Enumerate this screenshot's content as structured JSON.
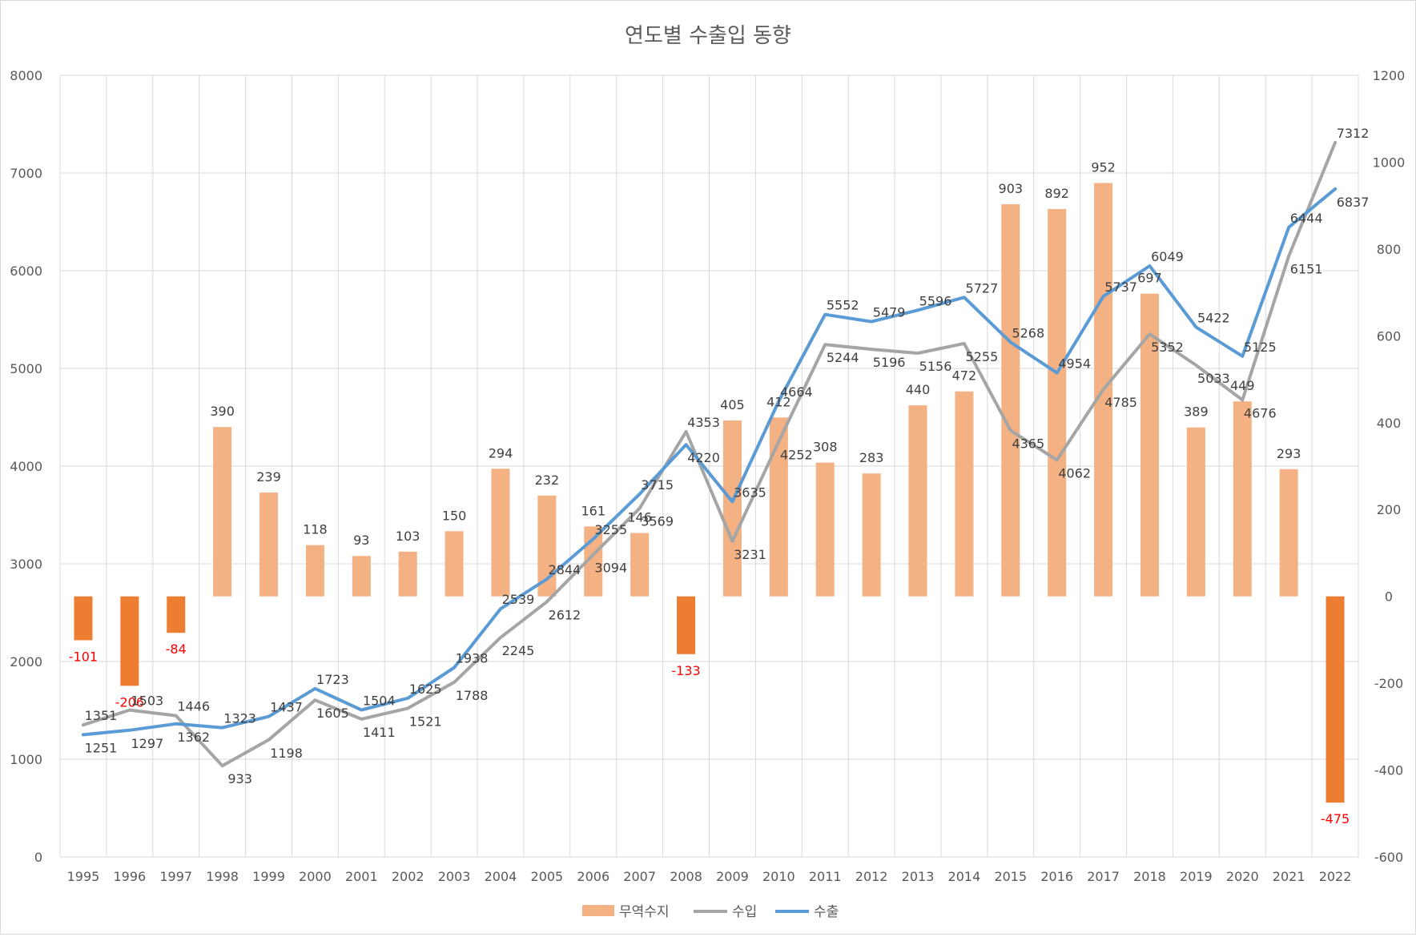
{
  "chart_data": {
    "type": "bar+line",
    "title": "연도별 수출입 동향",
    "categories": [
      "1995",
      "1996",
      "1997",
      "1998",
      "1999",
      "2000",
      "2001",
      "2002",
      "2003",
      "2004",
      "2005",
      "2006",
      "2007",
      "2008",
      "2009",
      "2010",
      "2011",
      "2012",
      "2013",
      "2014",
      "2015",
      "2016",
      "2017",
      "2018",
      "2019",
      "2020",
      "2021",
      "2022"
    ],
    "series": [
      {
        "name": "무역수지",
        "type": "bar",
        "axis": "right",
        "values": [
          -101,
          -206,
          -84,
          390,
          239,
          118,
          93,
          103,
          150,
          294,
          232,
          161,
          146,
          -133,
          405,
          412,
          308,
          283,
          440,
          472,
          903,
          892,
          952,
          697,
          389,
          449,
          293,
          -475
        ]
      },
      {
        "name": "수입",
        "type": "line",
        "axis": "left",
        "values": [
          1351,
          1503,
          1446,
          933,
          1198,
          1605,
          1411,
          1521,
          1788,
          2245,
          2612,
          3094,
          3569,
          4353,
          3231,
          4252,
          5244,
          5196,
          5156,
          5255,
          4365,
          4062,
          4785,
          5352,
          5033,
          4676,
          6151,
          7312
        ]
      },
      {
        "name": "수출",
        "type": "line",
        "axis": "left",
        "values": [
          1251,
          1297,
          1362,
          1323,
          1437,
          1723,
          1504,
          1625,
          1938,
          2539,
          2844,
          3255,
          3715,
          4220,
          3635,
          4664,
          5552,
          5479,
          5596,
          5727,
          5268,
          4954,
          5737,
          6049,
          5422,
          5125,
          6444,
          6837
        ]
      }
    ],
    "y_left": {
      "min": 0,
      "max": 8000,
      "ticks": [
        "0",
        "1000",
        "2000",
        "3000",
        "4000",
        "5000",
        "6000",
        "7000",
        "8000"
      ]
    },
    "y_right": {
      "min": -600,
      "max": 1200,
      "ticks": [
        "-600",
        "-400",
        "-200",
        "0",
        "200",
        "400",
        "600",
        "800",
        "1000",
        "1200"
      ]
    },
    "legend_position": "bottom",
    "grid": true,
    "colors": {
      "bar_positive": "#f4b183",
      "bar_negative": "#ed7d31",
      "import_line": "#a5a5a5",
      "export_line": "#5b9bd5",
      "negative_label": "#ff0000"
    }
  }
}
